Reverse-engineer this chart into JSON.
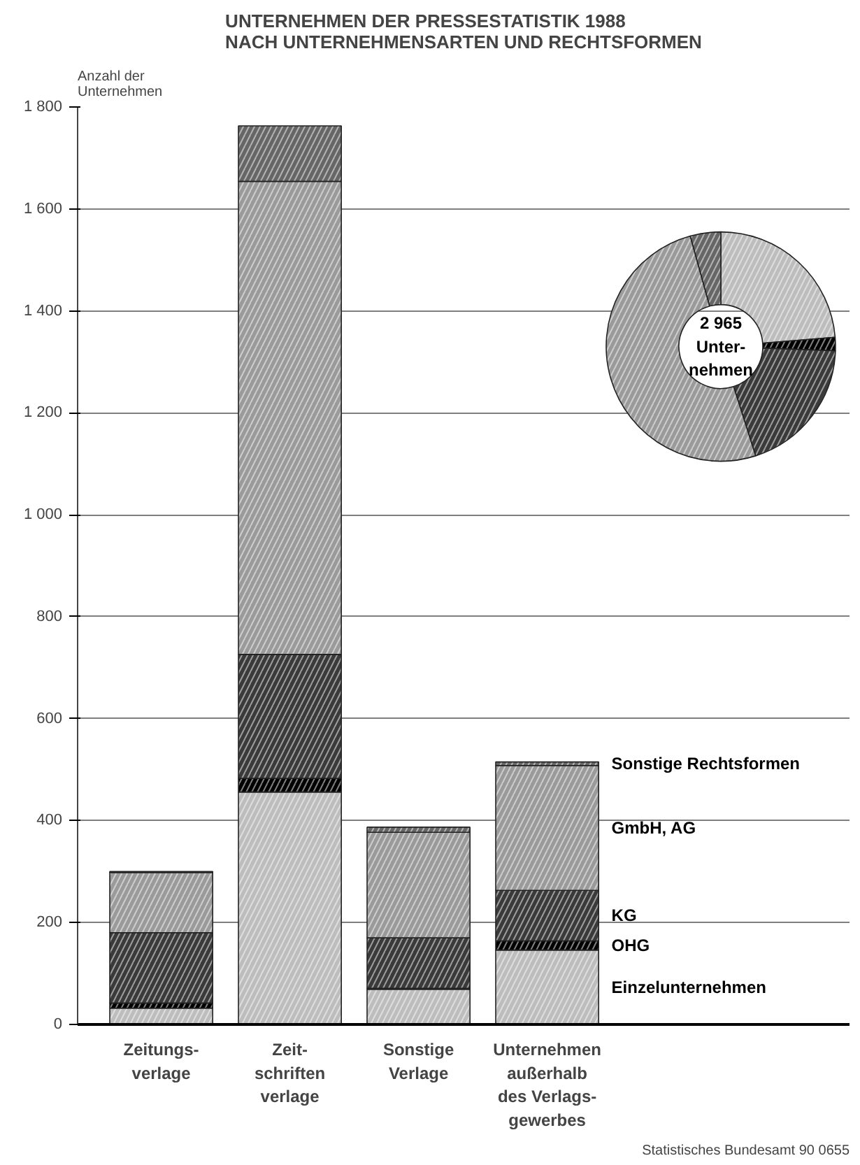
{
  "chart_data": [
    {
      "type": "bar",
      "title": "UNTERNEHMEN DER PRESSESTATISTIK 1988\nNACH UNTERNEHMENSARTEN UND RECHTSFORMEN",
      "ylabel": "Anzahl der\nUnternehmen",
      "stacked": true,
      "categories": [
        "Zeitungs-\nverlage",
        "Zeit-\nschriften\nverlage",
        "Sonstige\nVerlage",
        "Unternehmen\naußerhalb\ndes Verlags-\ngewerbes"
      ],
      "series": [
        {
          "name": "Einzelunternehmen",
          "color": "#bdbdbd",
          "values": [
            32,
            456,
            69,
            146
          ]
        },
        {
          "name": "OHG",
          "color": "#000000",
          "values": [
            10,
            27,
            2,
            18
          ]
        },
        {
          "name": "KG",
          "color": "#3a3a3a",
          "values": [
            138,
            243,
            99,
            99
          ]
        },
        {
          "name": "GmbH, AG",
          "color": "#9a9a9a",
          "values": [
            118,
            928,
            207,
            245
          ]
        },
        {
          "name": "Sonstige Rechtsformen",
          "color": "#666666",
          "values": [
            2,
            109,
            10,
            7
          ]
        }
      ],
      "ylim": [
        0,
        1800
      ],
      "yticks": [
        0,
        200,
        400,
        600,
        800,
        {
          "value": 1000,
          "label": "1 000"
        },
        {
          "value": 1200,
          "label": "1 200"
        },
        {
          "value": 1400,
          "label": "1 400"
        },
        {
          "value": 1600,
          "label": "1 600"
        },
        {
          "value": 1800,
          "label": "1 800"
        }
      ],
      "grid": "y",
      "annotations": [
        "Statistisches Bundesamt 90 0655"
      ]
    },
    {
      "type": "donut",
      "categories": [
        null,
        null,
        null,
        null,
        null
      ],
      "values": [
        23.7,
        1.9,
        19.5,
        50.6,
        4.3
      ],
      "colors": [
        "#bdbdbd",
        "#000000",
        "#3a3a3a",
        "#9a9a9a",
        "#666666"
      ],
      "annotations": [
        "2 965\nUnter-\nnehmen"
      ]
    }
  ]
}
